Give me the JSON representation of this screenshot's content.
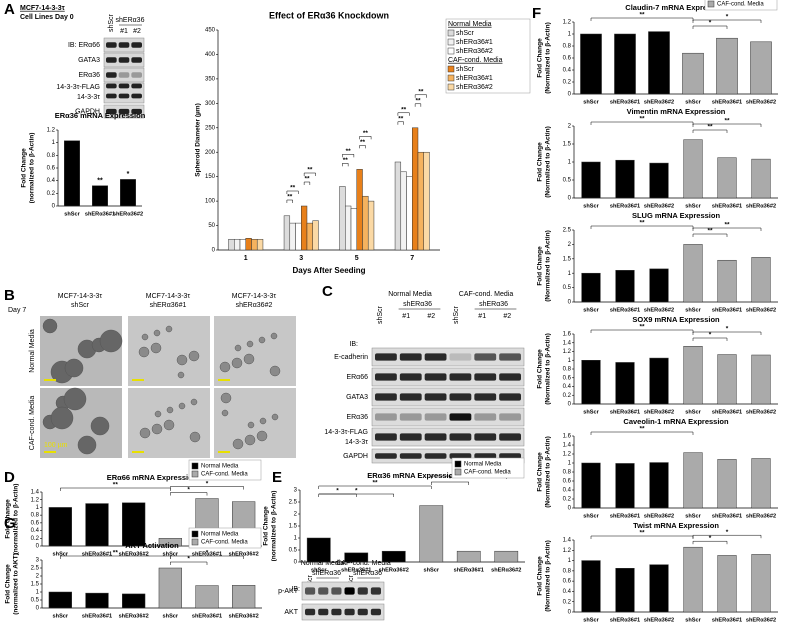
{
  "panel_letters": [
    "A",
    "B",
    "C",
    "D",
    "E",
    "F",
    "G"
  ],
  "blot_a": {
    "title": [
      "MCF7-14-3-3τ",
      "Cell Lines Day 0"
    ],
    "group": "shERα36",
    "lanes": [
      "shScr",
      "#1",
      "#2"
    ],
    "rows": [
      "IB: ERα66",
      "GATA3",
      "ERα36",
      "14-3-3τ-FLAG",
      "14-3-3τ",
      "GAPDH"
    ]
  },
  "images_b": {
    "day": "Day 7",
    "columns": [
      [
        "MCF7-14-3-3τ",
        "shScr"
      ],
      [
        "MCF7-14-3-3τ",
        "shERα36#1"
      ],
      [
        "MCF7-14-3-3τ",
        "shERα36#2"
      ]
    ],
    "rows": [
      "Normal Media",
      "CAF-cond. Media"
    ],
    "scale": "100 µm"
  },
  "blot_c": {
    "ib": "IB:",
    "groups": [
      "Normal Media",
      "CAF-cond. Media"
    ],
    "subgroup": "shERα36",
    "lanes": [
      "shScr",
      "#1",
      "#2"
    ],
    "rows": [
      "E-cadherin",
      "ERα66",
      "GATA3",
      "ERα36",
      "14-3-3τ-FLAG",
      "14-3-3τ",
      "GAPDH"
    ]
  },
  "blot_g": {
    "ib": "IB:",
    "groups": [
      "Normal Media",
      "CAF-cond. Media"
    ],
    "subgroup": "shERα36",
    "lanes": [
      "shScr",
      "#1",
      "#2"
    ],
    "rows": [
      "p-AKT",
      "AKT"
    ]
  },
  "chart_data": [
    {
      "type": "bar",
      "title": "ERα36 mRNA Expression",
      "ylabel": [
        "Fold Change",
        "(normalized to β-Actin)"
      ],
      "categories": [
        "shScr",
        "shERα36#1",
        "shERα36#2"
      ],
      "values": [
        1.03,
        0.32,
        0.42
      ],
      "color": "#000000",
      "ylim": [
        0,
        1.2
      ],
      "yticks": [
        0,
        0.2,
        0.4,
        0.6,
        0.8,
        1,
        1.2
      ],
      "annotations": [
        {
          "label": "**",
          "at": 1
        },
        {
          "label": "*",
          "at": 2
        }
      ]
    },
    {
      "type": "bar",
      "title": "Effect of ERα36 Knockdown",
      "ylabel": [
        "Spheroid Diameter (µm)"
      ],
      "xlabel": "Days After Seeding",
      "categories": [
        "1",
        "3",
        "5",
        "7"
      ],
      "series": [
        {
          "name": "shScr",
          "color": "#dcdcdc",
          "values": [
            22,
            70,
            130,
            180
          ]
        },
        {
          "name": "shERα36#1",
          "color": "#f2f2f2",
          "values": [
            22,
            55,
            90,
            160
          ]
        },
        {
          "name": "shERα36#2",
          "color": "#ffffff",
          "values": [
            21,
            55,
            85,
            150
          ]
        },
        {
          "name": "shScr",
          "color": "#e8801a",
          "values": [
            24,
            90,
            165,
            250
          ]
        },
        {
          "name": "shERα36#1",
          "color": "#f5b25e",
          "values": [
            22,
            55,
            110,
            200
          ]
        },
        {
          "name": "shERα36#2",
          "color": "#fbd9a5",
          "values": [
            22,
            60,
            100,
            200
          ]
        }
      ],
      "legend": "outside right",
      "legend_groups": [
        {
          "title": "Normal Media",
          "series": [
            0,
            1,
            2
          ]
        },
        {
          "title": "CAF-cond. Media",
          "series": [
            3,
            4,
            5
          ]
        }
      ],
      "ylim": [
        0,
        450
      ],
      "yticks": [
        0,
        50,
        100,
        150,
        200,
        250,
        300,
        350,
        400,
        450
      ],
      "brackets": [
        {
          "label": "**",
          "category": 1,
          "from": 0,
          "to": 1
        },
        {
          "label": "**",
          "category": 1,
          "from": 0,
          "to": 2
        },
        {
          "label": "**",
          "category": 1,
          "from": 3,
          "to": 4
        },
        {
          "label": "**",
          "category": 1,
          "from": 3,
          "to": 5
        },
        {
          "label": "**",
          "category": 2,
          "from": 0,
          "to": 1
        },
        {
          "label": "**",
          "category": 2,
          "from": 0,
          "to": 2
        },
        {
          "label": "**",
          "category": 2,
          "from": 3,
          "to": 4
        },
        {
          "label": "**",
          "category": 2,
          "from": 3,
          "to": 5
        },
        {
          "label": "**",
          "category": 3,
          "from": 0,
          "to": 1
        },
        {
          "label": "**",
          "category": 3,
          "from": 0,
          "to": 2
        },
        {
          "label": "**",
          "category": 3,
          "from": 3,
          "to": 4
        },
        {
          "label": "**",
          "category": 3,
          "from": 3,
          "to": 5
        }
      ]
    },
    {
      "type": "bar",
      "title": "ERα66 mRNA Expression",
      "ylabel": [
        "Fold Change",
        "(normalized to β-Actin)"
      ],
      "categories": [
        "shScr",
        "shERα36#1",
        "shERα36#2",
        "shScr",
        "shERα36#1",
        "shERα36#2"
      ],
      "series": [
        {
          "name": "Normal Media",
          "color": "#000000",
          "values": [
            1.0,
            1.1,
            1.12,
            null,
            null,
            null
          ]
        },
        {
          "name": "CAF-cond. Media",
          "color": "#aaaaaa",
          "values": [
            null,
            null,
            null,
            0.2,
            1.23,
            1.15
          ]
        }
      ],
      "legend": "upper right",
      "ylim": [
        0,
        1.4
      ],
      "yticks": [
        0,
        0.2,
        0.4,
        0.6,
        0.8,
        1,
        1.2,
        1.4
      ],
      "brackets": [
        {
          "label": "**",
          "from": 0,
          "to": 3
        },
        {
          "label": "*",
          "from": 3,
          "to": 4
        },
        {
          "label": "*",
          "from": 3,
          "to": 5
        }
      ]
    },
    {
      "type": "bar",
      "title": "ERα36 mRNA Expression",
      "ylabel": [
        "Fold Change",
        "(normalized to β-Actin)"
      ],
      "categories": [
        "shScr",
        "shERα36#1",
        "shERα36#2",
        "shScr",
        "shERα36#1",
        "shERα36#2"
      ],
      "series": [
        {
          "name": "Normal Media",
          "color": "#000000",
          "values": [
            1.0,
            0.38,
            0.45,
            null,
            null,
            null
          ]
        },
        {
          "name": "CAF-cond. Media",
          "color": "#aaaaaa",
          "values": [
            null,
            null,
            null,
            2.35,
            0.45,
            0.45
          ]
        }
      ],
      "legend": "upper right",
      "ylim": [
        0,
        3
      ],
      "yticks": [
        0,
        0.5,
        1,
        1.5,
        2,
        2.5,
        3
      ],
      "brackets": [
        {
          "label": "*",
          "from": 0,
          "to": 1
        },
        {
          "label": "*",
          "from": 0,
          "to": 2
        },
        {
          "label": "**",
          "from": 0,
          "to": 3
        },
        {
          "label": "*",
          "from": 3,
          "to": 4
        },
        {
          "label": "*",
          "from": 3,
          "to": 5
        }
      ]
    },
    {
      "type": "bar",
      "title": "AKT Activation",
      "ylabel": [
        "Fold Change",
        "(normalized to AKT)"
      ],
      "categories": [
        "shScr",
        "shERα36#1",
        "shERα36#2",
        "shScr",
        "shERα36#1",
        "shERα36#2"
      ],
      "series": [
        {
          "name": "Normal Media",
          "color": "#000000",
          "values": [
            1.0,
            0.93,
            0.88,
            null,
            null,
            null
          ]
        },
        {
          "name": "CAF-cond. Media",
          "color": "#aaaaaa",
          "values": [
            null,
            null,
            null,
            2.5,
            1.4,
            1.42
          ]
        }
      ],
      "legend": "upper right",
      "ylim": [
        0,
        3
      ],
      "yticks": [
        0,
        0.5,
        1,
        1.5,
        2,
        2.5,
        3
      ],
      "brackets": [
        {
          "label": "**",
          "from": 0,
          "to": 3
        },
        {
          "label": "*",
          "from": 3,
          "to": 4
        },
        {
          "label": "*",
          "from": 3,
          "to": 5
        }
      ]
    },
    {
      "type": "bar",
      "title": "Claudin-7 mRNA Expression",
      "ylabel": [
        "Fold Change",
        "(Normalized to β-Actin)"
      ],
      "categories": [
        "shScr",
        "shERα36#1",
        "shERα36#2",
        "shScr",
        "shERα36#1",
        "shERα36#2"
      ],
      "series": [
        {
          "name": "Normal Media",
          "color": "#000000",
          "values": [
            1.0,
            1.0,
            1.04,
            null,
            null,
            null
          ]
        },
        {
          "name": "CAF-cond. Media",
          "color": "#aaaaaa",
          "values": [
            null,
            null,
            null,
            0.68,
            0.93,
            0.87
          ]
        }
      ],
      "legend": "upper right",
      "ylim": [
        0,
        1.2
      ],
      "yticks": [
        0,
        0.2,
        0.4,
        0.6,
        0.8,
        1,
        1.2
      ],
      "brackets": [
        {
          "label": "**",
          "from": 0,
          "to": 3
        },
        {
          "label": "*",
          "from": 3,
          "to": 4
        },
        {
          "label": "*",
          "from": 3,
          "to": 5
        }
      ]
    },
    {
      "type": "bar",
      "title": "Vimentin mRNA Expression",
      "ylabel": [
        "Fold Change",
        "(Normalized to β-Actin)"
      ],
      "categories": [
        "shScr",
        "shERα36#1",
        "shERα36#2",
        "shScr",
        "shERα36#1",
        "shERα36#2"
      ],
      "values": [
        1.0,
        1.05,
        0.97,
        1.62,
        1.12,
        1.08
      ],
      "colors": [
        "#000000",
        "#000000",
        "#000000",
        "#aaaaaa",
        "#aaaaaa",
        "#aaaaaa"
      ],
      "ylim": [
        0,
        2
      ],
      "yticks": [
        0,
        0.5,
        1,
        1.5,
        2
      ],
      "brackets": [
        {
          "label": "**",
          "from": 0,
          "to": 3
        },
        {
          "label": "**",
          "from": 3,
          "to": 4
        },
        {
          "label": "**",
          "from": 3,
          "to": 5
        }
      ]
    },
    {
      "type": "bar",
      "title": "SLUG mRNA Expression",
      "ylabel": [
        "Fold Change",
        "(Normalized to β-Actin)"
      ],
      "categories": [
        "shScr",
        "shERα36#1",
        "shERα36#2",
        "shScr",
        "shERα36#1",
        "shERα36#2"
      ],
      "values": [
        1.0,
        1.1,
        1.15,
        2.0,
        1.45,
        1.55
      ],
      "colors": [
        "#000000",
        "#000000",
        "#000000",
        "#aaaaaa",
        "#aaaaaa",
        "#aaaaaa"
      ],
      "ylim": [
        0,
        2.5
      ],
      "yticks": [
        0,
        0.5,
        1,
        1.5,
        2,
        2.5
      ],
      "brackets": [
        {
          "label": "**",
          "from": 0,
          "to": 3
        },
        {
          "label": "**",
          "from": 3,
          "to": 4
        },
        {
          "label": "**",
          "from": 3,
          "to": 5
        }
      ]
    },
    {
      "type": "bar",
      "title": "SOX9 mRNA Expression",
      "ylabel": [
        "Fold Change",
        "(Normalized to β-Actin)"
      ],
      "categories": [
        "shScr",
        "shERα36#1",
        "shERα36#2",
        "shScr",
        "shERα36#1",
        "shERα36#2"
      ],
      "values": [
        1.0,
        0.95,
        1.05,
        1.32,
        1.13,
        1.12
      ],
      "colors": [
        "#000000",
        "#000000",
        "#000000",
        "#aaaaaa",
        "#aaaaaa",
        "#aaaaaa"
      ],
      "ylim": [
        0,
        1.6
      ],
      "yticks": [
        0,
        0.2,
        0.4,
        0.6,
        0.8,
        1,
        1.2,
        1.4,
        1.6
      ],
      "brackets": [
        {
          "label": "**",
          "from": 0,
          "to": 3
        },
        {
          "label": "*",
          "from": 3,
          "to": 4
        },
        {
          "label": "*",
          "from": 3,
          "to": 5
        }
      ]
    },
    {
      "type": "bar",
      "title": "Caveolin-1 mRNA Expression",
      "ylabel": [
        "Fold Change",
        "(Normalized to β-Actin)"
      ],
      "categories": [
        "shScr",
        "shERα36#1",
        "shERα36#2",
        "shScr",
        "shERα36#1",
        "shERα36#2"
      ],
      "values": [
        1.0,
        0.99,
        1.01,
        1.23,
        1.08,
        1.1
      ],
      "colors": [
        "#000000",
        "#000000",
        "#000000",
        "#aaaaaa",
        "#aaaaaa",
        "#aaaaaa"
      ],
      "ylim": [
        0,
        1.6
      ],
      "yticks": [
        0,
        0.2,
        0.4,
        0.6,
        0.8,
        1,
        1.2,
        1.4,
        1.6
      ],
      "brackets": [
        {
          "label": "**",
          "from": 0,
          "to": 3
        }
      ]
    },
    {
      "type": "bar",
      "title": "Twist mRNA Expression",
      "ylabel": [
        "Fold Change",
        "(Normalized to β-Actin)"
      ],
      "categories": [
        "shScr",
        "shERα36#1",
        "shERα36#2",
        "shScr",
        "shERα36#1",
        "shERα36#2"
      ],
      "values": [
        1.0,
        0.85,
        0.92,
        1.26,
        1.1,
        1.12
      ],
      "colors": [
        "#000000",
        "#000000",
        "#000000",
        "#aaaaaa",
        "#aaaaaa",
        "#aaaaaa"
      ],
      "ylim": [
        0,
        1.4
      ],
      "yticks": [
        0,
        0.2,
        0.4,
        0.6,
        0.8,
        1,
        1.2,
        1.4
      ],
      "brackets": [
        {
          "label": "**",
          "from": 0,
          "to": 3
        },
        {
          "label": "*",
          "from": 3,
          "to": 4
        },
        {
          "label": "*",
          "from": 3,
          "to": 5
        }
      ]
    }
  ]
}
